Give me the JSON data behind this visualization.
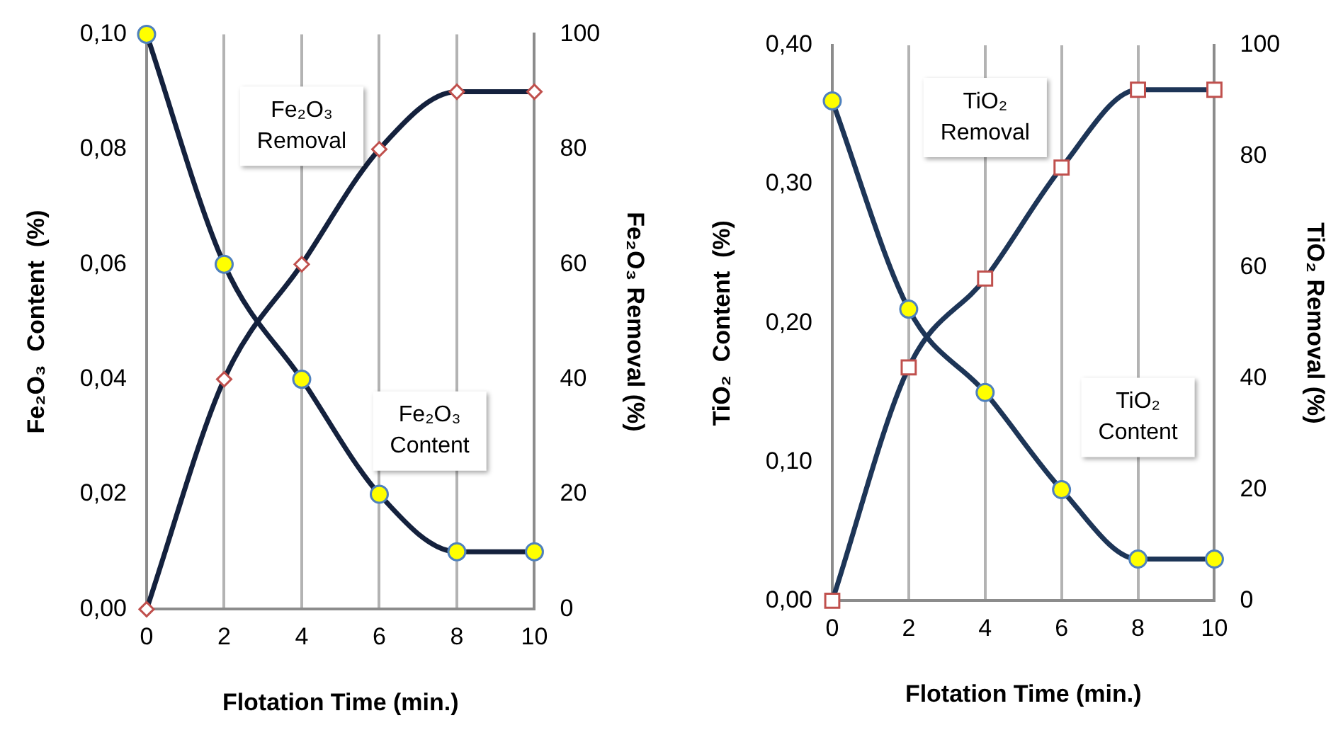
{
  "chart_data": [
    {
      "type": "line",
      "xlabel": "Flotation Time (min.)",
      "ylabel": "Fe₂O₃  Content  (%)",
      "y2label": "Fe₂O₃ Removal (%)",
      "x": [
        0,
        2,
        4,
        6,
        8,
        10
      ],
      "xlim": [
        0,
        10
      ],
      "xticks": [
        0,
        2,
        4,
        6,
        8,
        10
      ],
      "ylim": [
        0,
        0.1
      ],
      "yticks": [
        {
          "value": 0,
          "label": "0,00"
        },
        {
          "value": 0.02,
          "label": "0,02"
        },
        {
          "value": 0.04,
          "label": "0,04"
        },
        {
          "value": 0.06,
          "label": "0,06"
        },
        {
          "value": 0.08,
          "label": "0,08"
        },
        {
          "value": 0.1,
          "label": "0,10"
        }
      ],
      "y2lim": [
        0,
        100
      ],
      "y2ticks": [
        0,
        20,
        40,
        60,
        80,
        100
      ],
      "series": [
        {
          "name": "Fe₂O₃ Content",
          "color": "#14213d",
          "marker": "circle",
          "values": [
            0.1,
            0.06,
            0.04,
            0.02,
            0.01,
            0.01
          ]
        },
        {
          "name": "Fe₂O₃ Removal",
          "color": "#14213d",
          "marker": "diamond",
          "axis": "y2",
          "values": [
            0,
            40,
            60,
            80,
            90,
            90
          ]
        }
      ],
      "grid": "x",
      "legend": false
    },
    {
      "type": "line",
      "xlabel": "Flotation Time (min.)",
      "ylabel": "TiO₂  Content  (%)",
      "y2label": "TiO₂ Removal (%)",
      "x": [
        0,
        2,
        4,
        6,
        8,
        10
      ],
      "xlim": [
        0,
        10
      ],
      "xticks": [
        0,
        2,
        4,
        6,
        8,
        10
      ],
      "ylim": [
        0,
        0.4
      ],
      "yticks": [
        {
          "value": 0,
          "label": "0,00"
        },
        {
          "value": 0.1,
          "label": "0,10"
        },
        {
          "value": 0.2,
          "label": "0,20"
        },
        {
          "value": 0.3,
          "label": "0,30"
        },
        {
          "value": 0.4,
          "label": "0,40"
        }
      ],
      "y2lim": [
        0,
        100
      ],
      "y2ticks": [
        0,
        20,
        40,
        60,
        80,
        100
      ],
      "series": [
        {
          "name": "TiO₂ Content",
          "color": "#1d3557",
          "marker": "circle",
          "values": [
            0.36,
            0.21,
            0.15,
            0.08,
            0.03,
            0.03
          ]
        },
        {
          "name": "TiO₂ Removal",
          "color": "#1d3557",
          "marker": "square",
          "axis": "y2",
          "values": [
            0,
            42,
            58,
            78,
            92,
            92
          ]
        }
      ],
      "grid": "x",
      "legend": false
    }
  ]
}
